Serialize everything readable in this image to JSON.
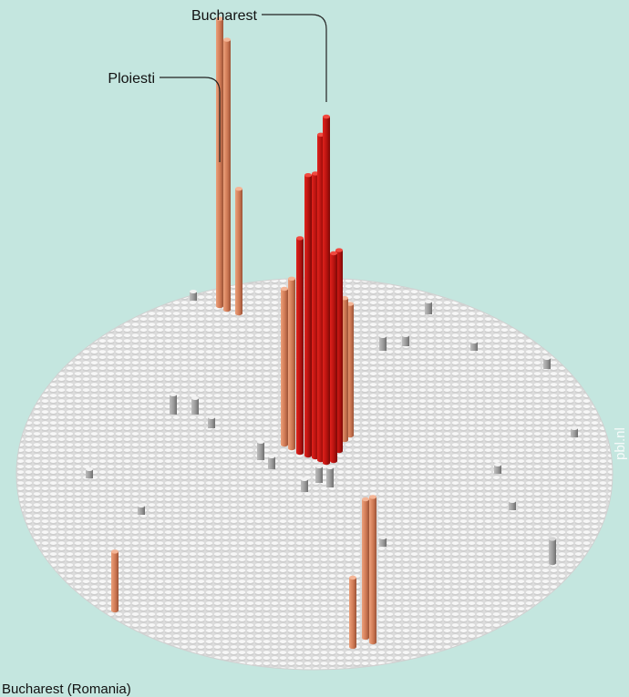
{
  "watermark": "pbl.nl",
  "caption": "Bucharest (Romania)",
  "colors": {
    "background": "#c4e6df",
    "base": "#ebebeb",
    "low": "#9a9a9a",
    "mid": "#d8845f",
    "high": "#c8100d"
  },
  "chart_data": {
    "type": "3d-bar",
    "title": "",
    "labels": [
      {
        "name": "Bucharest"
      },
      {
        "name": "Ploiesti"
      }
    ],
    "series": [
      {
        "name": "",
        "note": "relative bar heights of visible tall columns (0-1)",
        "columns": [
          {
            "id": "bucharest-1",
            "height": 1.0,
            "color_class": "high"
          },
          {
            "id": "bucharest-2",
            "height": 0.94,
            "color_class": "high"
          },
          {
            "id": "bucharest-3",
            "height": 0.82,
            "color_class": "high"
          },
          {
            "id": "bucharest-4",
            "height": 0.81,
            "color_class": "high"
          },
          {
            "id": "bucharest-5",
            "height": 0.62,
            "color_class": "high"
          },
          {
            "id": "bucharest-6",
            "height": 0.6,
            "color_class": "high"
          },
          {
            "id": "bucharest-7",
            "height": 0.58,
            "color_class": "high"
          },
          {
            "id": "bucharest-8",
            "height": 0.49,
            "color_class": "mid"
          },
          {
            "id": "bucharest-9",
            "height": 0.45,
            "color_class": "mid"
          },
          {
            "id": "bucharest-10",
            "height": 0.41,
            "color_class": "mid"
          },
          {
            "id": "bucharest-11",
            "height": 0.38,
            "color_class": "mid"
          },
          {
            "id": "ploiesti-1",
            "height": 0.83,
            "color_class": "mid"
          },
          {
            "id": "ploiesti-2",
            "height": 0.78,
            "color_class": "mid"
          },
          {
            "id": "ploiesti-3",
            "height": 0.36,
            "color_class": "mid"
          },
          {
            "id": "south-1",
            "height": 0.42,
            "color_class": "mid"
          },
          {
            "id": "south-2",
            "height": 0.4,
            "color_class": "mid"
          },
          {
            "id": "south-3",
            "height": 0.2,
            "color_class": "mid"
          },
          {
            "id": "southwest-1",
            "height": 0.17,
            "color_class": "mid"
          },
          {
            "id": "east-1",
            "height": 0.07,
            "color_class": "low"
          }
        ]
      }
    ]
  }
}
